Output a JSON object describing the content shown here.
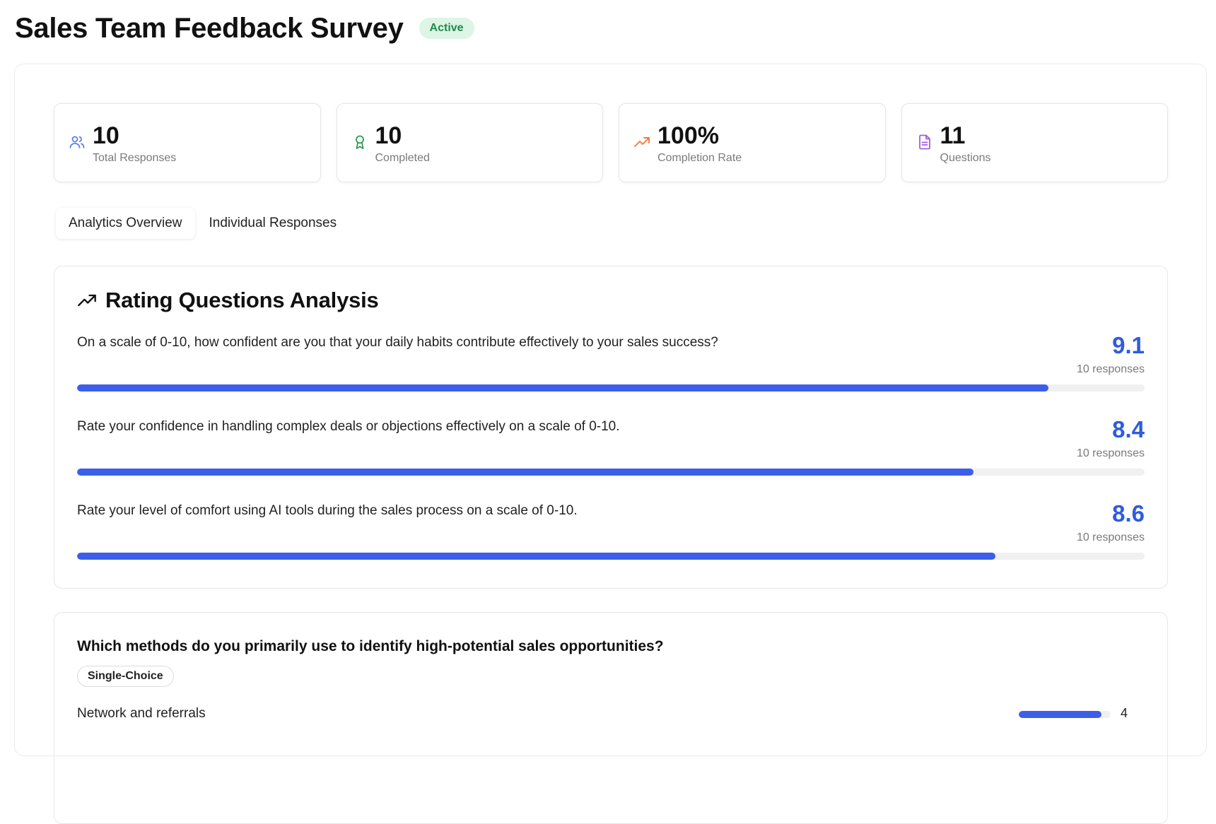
{
  "header": {
    "title": "Sales Team Feedback Survey",
    "status": "Active"
  },
  "stats": [
    {
      "value": "10",
      "label": "Total Responses",
      "icon": "users-icon",
      "color": "#5b7ef0"
    },
    {
      "value": "10",
      "label": "Completed",
      "icon": "award-icon",
      "color": "#2e9a55"
    },
    {
      "value": "100%",
      "label": "Completion Rate",
      "icon": "trending-up-icon",
      "color": "#f07a3a"
    },
    {
      "value": "11",
      "label": "Questions",
      "icon": "file-text-icon",
      "color": "#a25ce0"
    }
  ],
  "tabs": [
    {
      "label": "Analytics Overview",
      "active": true
    },
    {
      "label": "Individual Responses",
      "active": false
    }
  ],
  "rating_section": {
    "title": "Rating Questions Analysis",
    "icon": "trending-up-icon",
    "scale_max": 10,
    "items": [
      {
        "question": "On a scale of 0-10, how confident are you that your daily habits contribute effectively to your sales success?",
        "score": "9.1",
        "score_value": 9.1,
        "responses": "10 responses"
      },
      {
        "question": "Rate your confidence in handling complex deals or objections effectively on a scale of 0-10.",
        "score": "8.4",
        "score_value": 8.4,
        "responses": "10 responses"
      },
      {
        "question": "Rate your level of comfort using AI tools during the sales process on a scale of 0-10.",
        "score": "8.6",
        "score_value": 8.6,
        "responses": "10 responses"
      }
    ]
  },
  "choice_section": {
    "question": "Which methods do you primarily use to identify high-potential sales opportunities?",
    "type": "Single-Choice",
    "options": [
      {
        "label": "Network and referrals",
        "count": "4",
        "count_value": 4,
        "share": 0.9
      }
    ]
  },
  "colors": {
    "accent": "#3c5ee8",
    "score_text": "#2f5be0",
    "badge_bg": "#dcf5e4",
    "badge_text": "#1f8a4c"
  }
}
